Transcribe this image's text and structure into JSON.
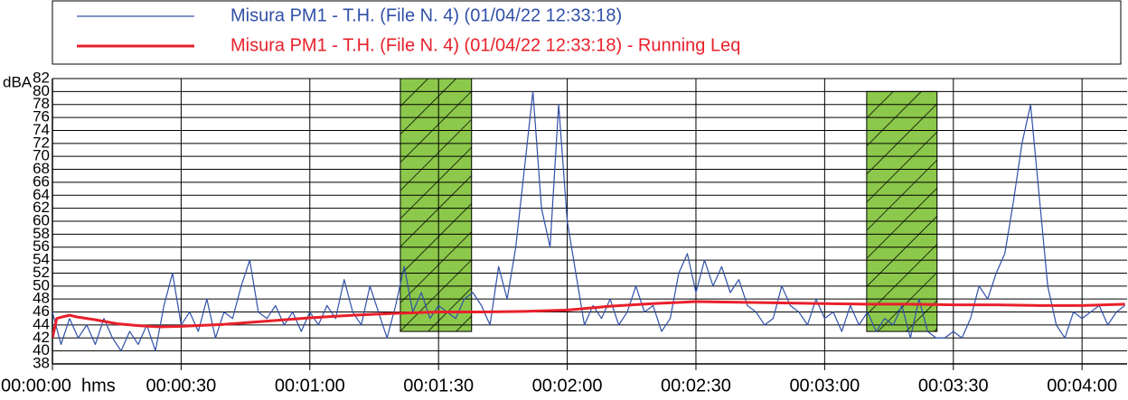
{
  "chart_data": {
    "type": "line",
    "ylabel": "dBA",
    "xlabel": "hms",
    "xlim": [
      0,
      250.5
    ],
    "ylim": [
      38,
      82
    ],
    "yticks": [
      38,
      40,
      42,
      44,
      46,
      48,
      50,
      52,
      54,
      56,
      58,
      60,
      62,
      64,
      66,
      68,
      70,
      72,
      74,
      76,
      78,
      80,
      82
    ],
    "xticks": [
      {
        "value": 0,
        "label": "00:00:00"
      },
      {
        "value": 30,
        "label": "00:00:30"
      },
      {
        "value": 60,
        "label": "00:01:00"
      },
      {
        "value": 90,
        "label": "00:01:30"
      },
      {
        "value": 120,
        "label": "00:02:00"
      },
      {
        "value": 150,
        "label": "00:02:30"
      },
      {
        "value": 180,
        "label": "00:03:00"
      },
      {
        "value": 210,
        "label": "00:03:30"
      },
      {
        "value": 240,
        "label": "00:04:00"
      }
    ],
    "grid": true,
    "regions": [
      {
        "x": [
          81.1,
          97.7
        ],
        "y": [
          43,
          82
        ],
        "color": "#8cc84b"
      },
      {
        "x": [
          189.8,
          206.2
        ],
        "y": [
          43,
          80
        ],
        "color": "#8cc84b"
      }
    ],
    "series": [
      {
        "name": "Misura PM1 - T.H.  (File N. 4) (01/04/22 12:33:18)",
        "color": "#3050a8",
        "width": 1.2,
        "x": [
          0,
          2,
          4,
          6,
          8,
          10,
          12,
          14,
          16,
          18,
          20,
          22,
          24,
          26,
          28,
          30,
          32,
          34,
          36,
          38,
          40,
          42,
          44,
          46,
          48,
          50,
          52,
          54,
          56,
          58,
          60,
          62,
          64,
          66,
          68,
          70,
          72,
          74,
          76,
          78,
          80,
          82,
          84,
          86,
          88,
          90,
          92,
          94,
          96,
          98,
          100,
          102,
          104,
          106,
          108,
          110,
          112,
          114,
          116,
          118,
          120,
          122,
          124,
          126,
          128,
          130,
          132,
          134,
          136,
          138,
          140,
          142,
          144,
          146,
          148,
          150,
          152,
          154,
          156,
          158,
          160,
          162,
          164,
          166,
          168,
          170,
          172,
          174,
          176,
          178,
          180,
          182,
          184,
          186,
          188,
          190,
          192,
          194,
          196,
          198,
          200,
          202,
          204,
          206,
          208,
          210,
          212,
          214,
          216,
          218,
          220,
          222,
          224,
          226,
          228,
          230,
          232,
          234,
          236,
          238,
          240,
          242,
          244,
          246,
          248,
          250
        ],
        "values": [
          46,
          41,
          45,
          42,
          44,
          41,
          45,
          42,
          40,
          43,
          41,
          44,
          40,
          47,
          52,
          44,
          46,
          43,
          48,
          42,
          46,
          45,
          50,
          54,
          46,
          45,
          47,
          44,
          46,
          43,
          46,
          44,
          47,
          45,
          51,
          46,
          44,
          50,
          46,
          42,
          47,
          53,
          46,
          49,
          45,
          47,
          46,
          45,
          48,
          49,
          47,
          44,
          53,
          48,
          56,
          68,
          80,
          62,
          56,
          78,
          60,
          52,
          44,
          47,
          45,
          48,
          44,
          46,
          50,
          46,
          47,
          43,
          45,
          52,
          55,
          49,
          54,
          50,
          53,
          49,
          51,
          47,
          46,
          44,
          45,
          50,
          47,
          46,
          44,
          48,
          45,
          46,
          43,
          47,
          44,
          46,
          43,
          45,
          44,
          47,
          42,
          48,
          43,
          42,
          42,
          43,
          42,
          45,
          50,
          48,
          52,
          55,
          63,
          72,
          78,
          64,
          50,
          44,
          42,
          46,
          45,
          46,
          47,
          44,
          46,
          47
        ]
      },
      {
        "name": "Misura PM1 - T.H.  (File N. 4) (01/04/22 12:33:18) - Running Leq",
        "color": "#e8202a",
        "width": 3,
        "x": [
          0,
          1,
          2,
          4,
          6,
          10,
          15,
          20,
          25,
          30,
          40,
          50,
          60,
          70,
          80,
          90,
          100,
          110,
          120,
          130,
          140,
          150,
          160,
          170,
          180,
          190,
          200,
          210,
          220,
          230,
          240,
          250
        ],
        "values": [
          42,
          45,
          45.2,
          45.5,
          45.2,
          44.8,
          44.2,
          43.9,
          43.7,
          43.8,
          44.1,
          44.6,
          45.1,
          45.5,
          45.8,
          46,
          46,
          46.1,
          46.3,
          46.9,
          47.3,
          47.6,
          47.5,
          47.4,
          47.3,
          47.2,
          47.2,
          47.1,
          47.1,
          47,
          47,
          47.2
        ]
      }
    ]
  }
}
